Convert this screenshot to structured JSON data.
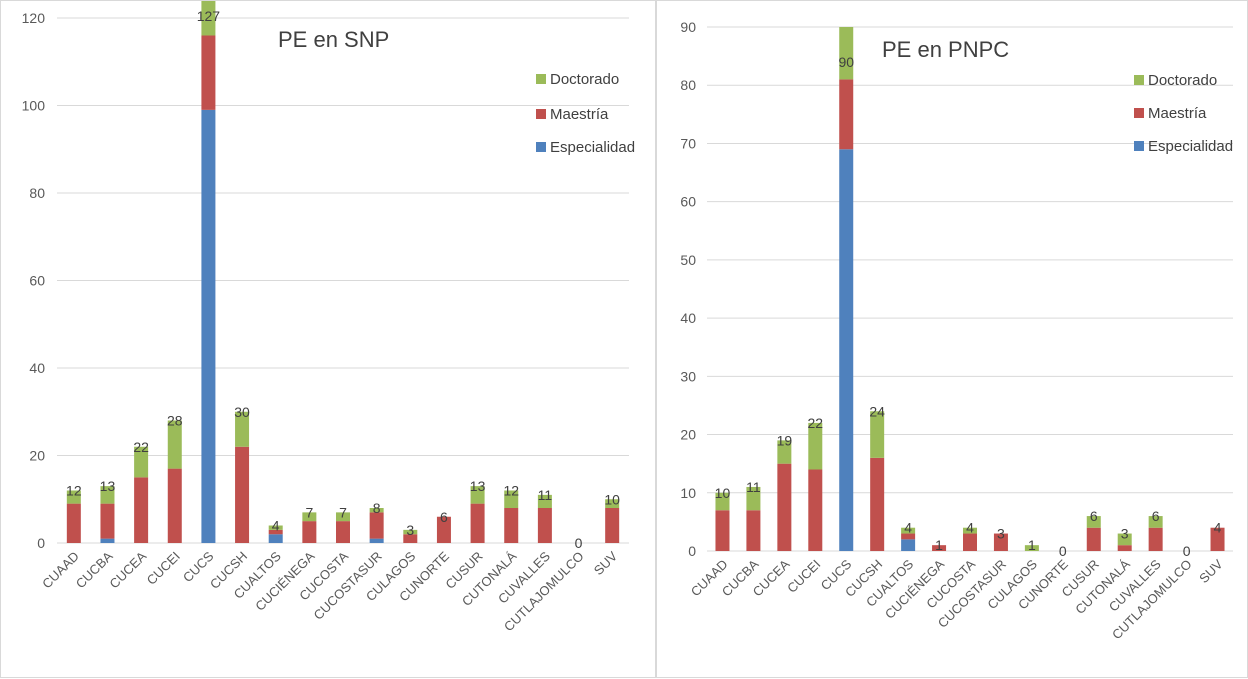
{
  "colors": {
    "Doctorado": "#9bbb59",
    "Maestría": "#c0504d",
    "Especialidad": "#4f81bd",
    "grid": "#d9d9d9"
  },
  "chart_data": [
    {
      "type": "bar",
      "stacked": true,
      "title": "PE en SNP",
      "categories": [
        "CUAAD",
        "CUCBA",
        "CUCEA",
        "CUCEI",
        "CUCS",
        "CUCSH",
        "CUALTOS",
        "CUCIÉNEGA",
        "CUCOSTA",
        "CUCOSTASUR",
        "CULAGOS",
        "CUNORTE",
        "CUSUR",
        "CUTONALÁ",
        "CUVALLES",
        "CUTLAJOMULCO",
        "SUV"
      ],
      "series": [
        {
          "name": "Especialidad",
          "values": [
            0,
            1,
            0,
            0,
            99,
            0,
            2,
            0,
            0,
            1,
            0,
            0,
            0,
            0,
            0,
            0,
            0
          ]
        },
        {
          "name": "Maestría",
          "values": [
            9,
            8,
            15,
            17,
            17,
            22,
            1,
            5,
            5,
            6,
            2,
            6,
            9,
            8,
            8,
            0,
            8
          ]
        },
        {
          "name": "Doctorado",
          "values": [
            3,
            4,
            7,
            11,
            11,
            8,
            1,
            2,
            2,
            1,
            1,
            0,
            4,
            4,
            3,
            0,
            2
          ]
        }
      ],
      "totals": [
        12,
        13,
        22,
        28,
        127,
        30,
        4,
        7,
        7,
        8,
        3,
        6,
        13,
        12,
        11,
        0,
        10
      ],
      "legend": [
        "Doctorado",
        "Maestría",
        "Especialidad"
      ],
      "legend_position": "right",
      "ylim": [
        0,
        120
      ],
      "yticks": [
        0,
        20,
        40,
        60,
        80,
        100,
        120
      ],
      "grid": true
    },
    {
      "type": "bar",
      "stacked": true,
      "title": "PE en PNPC",
      "categories": [
        "CUAAD",
        "CUCBA",
        "CUCEA",
        "CUCEI",
        "CUCS",
        "CUCSH",
        "CUALTOS",
        "CUCIÉNEGA",
        "CUCOSTA",
        "CUCOSTASUR",
        "CULAGOS",
        "CUNORTE",
        "CUSUR",
        "CUTONALÁ",
        "CUVALLES",
        "CUTLAJOMULCO",
        "SUV"
      ],
      "series": [
        {
          "name": "Especialidad",
          "values": [
            0,
            0,
            0,
            0,
            69,
            0,
            2,
            0,
            0,
            0,
            0,
            0,
            0,
            0,
            0,
            0,
            0
          ]
        },
        {
          "name": "Maestría",
          "values": [
            7,
            7,
            15,
            14,
            12,
            16,
            1,
            1,
            3,
            3,
            0,
            0,
            4,
            1,
            4,
            0,
            4
          ]
        },
        {
          "name": "Doctorado",
          "values": [
            3,
            4,
            4,
            8,
            9,
            8,
            1,
            0,
            1,
            0,
            1,
            0,
            2,
            2,
            2,
            0,
            0
          ]
        }
      ],
      "totals": [
        10,
        11,
        19,
        22,
        90,
        24,
        4,
        1,
        4,
        3,
        1,
        0,
        6,
        3,
        6,
        0,
        4
      ],
      "legend": [
        "Doctorado",
        "Maestría",
        "Especialidad"
      ],
      "legend_position": "right",
      "ylim": [
        0,
        90
      ],
      "yticks": [
        0,
        10,
        20,
        30,
        40,
        50,
        60,
        70,
        80,
        90
      ],
      "grid": true
    }
  ]
}
